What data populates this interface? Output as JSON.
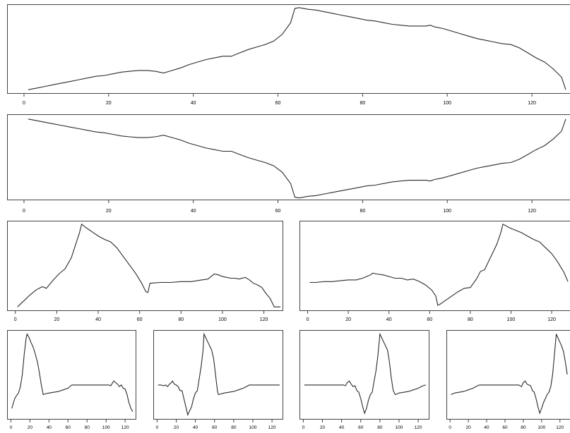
{
  "chart_data": [
    {
      "type": "line",
      "xticks": [
        "0",
        "20",
        "40",
        "60",
        "80",
        "100",
        "120"
      ],
      "xlim": [
        -4,
        129
      ],
      "ylim": [
        -0.02,
        1.04
      ],
      "x": [
        1,
        3,
        5,
        7,
        9,
        11,
        13,
        15,
        17,
        19,
        21,
        23,
        25,
        27,
        29,
        31,
        33,
        35,
        37,
        39,
        41,
        43,
        45,
        47,
        49,
        51,
        53,
        55,
        57,
        59,
        61,
        63,
        64,
        65,
        67,
        69,
        71,
        73,
        75,
        77,
        79,
        81,
        83,
        85,
        87,
        89,
        91,
        93,
        95,
        96,
        97,
        99,
        101,
        103,
        105,
        107,
        109,
        111,
        113,
        115,
        117,
        119,
        121,
        123,
        125,
        127,
        128
      ],
      "y": [
        0.02,
        0.04,
        0.06,
        0.08,
        0.1,
        0.12,
        0.14,
        0.16,
        0.18,
        0.19,
        0.21,
        0.23,
        0.24,
        0.25,
        0.25,
        0.24,
        0.22,
        0.25,
        0.28,
        0.32,
        0.35,
        0.38,
        0.4,
        0.42,
        0.42,
        0.46,
        0.5,
        0.53,
        0.56,
        0.6,
        0.68,
        0.82,
        0.99,
        1.0,
        0.98,
        0.97,
        0.95,
        0.93,
        0.91,
        0.89,
        0.87,
        0.85,
        0.84,
        0.82,
        0.8,
        0.79,
        0.78,
        0.78,
        0.78,
        0.79,
        0.77,
        0.75,
        0.72,
        0.69,
        0.66,
        0.63,
        0.61,
        0.59,
        0.57,
        0.56,
        0.52,
        0.46,
        0.4,
        0.35,
        0.27,
        0.17,
        0.02
      ]
    },
    {
      "type": "line",
      "xticks": [
        "0",
        "20",
        "40",
        "60",
        "80",
        "100",
        "120"
      ],
      "xlim": [
        -4,
        129
      ],
      "ylim": [
        -0.02,
        1.04
      ],
      "x": [
        1,
        3,
        5,
        7,
        9,
        11,
        13,
        15,
        17,
        19,
        21,
        23,
        25,
        27,
        29,
        31,
        33,
        35,
        37,
        39,
        41,
        43,
        45,
        47,
        49,
        51,
        53,
        55,
        57,
        59,
        61,
        63,
        64,
        65,
        67,
        69,
        71,
        73,
        75,
        77,
        79,
        81,
        83,
        85,
        87,
        89,
        91,
        93,
        95,
        96,
        97,
        99,
        101,
        103,
        105,
        107,
        109,
        111,
        113,
        115,
        117,
        119,
        121,
        123,
        125,
        127,
        128
      ],
      "y": [
        0.98,
        0.96,
        0.94,
        0.92,
        0.9,
        0.88,
        0.86,
        0.84,
        0.82,
        0.81,
        0.79,
        0.77,
        0.76,
        0.75,
        0.75,
        0.76,
        0.78,
        0.75,
        0.72,
        0.68,
        0.65,
        0.62,
        0.6,
        0.58,
        0.58,
        0.54,
        0.5,
        0.47,
        0.44,
        0.4,
        0.32,
        0.18,
        0.01,
        0.0,
        0.02,
        0.03,
        0.05,
        0.07,
        0.09,
        0.11,
        0.13,
        0.15,
        0.16,
        0.18,
        0.2,
        0.21,
        0.22,
        0.22,
        0.22,
        0.21,
        0.23,
        0.25,
        0.28,
        0.31,
        0.34,
        0.37,
        0.39,
        0.41,
        0.43,
        0.44,
        0.48,
        0.54,
        0.6,
        0.65,
        0.73,
        0.83,
        0.98
      ]
    },
    {
      "type": "line",
      "xticks": [
        "0",
        "20",
        "40",
        "60",
        "80",
        "100",
        "120"
      ],
      "xlim": [
        -4,
        129
      ],
      "ylim": [
        -0.02,
        1.04
      ],
      "x": [
        1,
        4,
        7,
        10,
        13,
        15,
        18,
        21,
        24,
        27,
        29,
        31,
        32,
        34,
        37,
        40,
        43,
        46,
        49,
        52,
        55,
        58,
        61,
        63,
        64,
        65,
        70,
        75,
        80,
        85,
        90,
        93,
        95,
        96,
        98,
        100,
        102,
        104,
        106,
        108,
        111,
        113,
        115,
        117,
        119,
        121,
        123,
        125,
        127,
        128
      ],
      "y": [
        0.02,
        0.09,
        0.16,
        0.22,
        0.26,
        0.24,
        0.33,
        0.41,
        0.47,
        0.6,
        0.75,
        0.9,
        1.0,
        0.96,
        0.91,
        0.86,
        0.82,
        0.79,
        0.72,
        0.62,
        0.52,
        0.42,
        0.3,
        0.2,
        0.19,
        0.3,
        0.31,
        0.31,
        0.32,
        0.32,
        0.34,
        0.35,
        0.39,
        0.41,
        0.4,
        0.38,
        0.37,
        0.36,
        0.36,
        0.35,
        0.37,
        0.34,
        0.3,
        0.28,
        0.25,
        0.18,
        0.12,
        0.02,
        0.02,
        0.02
      ]
    },
    {
      "type": "line",
      "xticks": [
        "0",
        "20",
        "40",
        "60",
        "80",
        "100",
        "120"
      ],
      "xlim": [
        -4,
        129
      ],
      "ylim": [
        -0.02,
        1.04
      ],
      "x": [
        1,
        4,
        8,
        12,
        16,
        20,
        24,
        27,
        29,
        31,
        32,
        34,
        37,
        40,
        43,
        46,
        49,
        52,
        55,
        58,
        61,
        63,
        64,
        65,
        68,
        71,
        74,
        77,
        80,
        83,
        85,
        87,
        89,
        91,
        93,
        95,
        96,
        99,
        102,
        105,
        108,
        111,
        114,
        117,
        120,
        123,
        126,
        128
      ],
      "y": [
        0.31,
        0.31,
        0.32,
        0.32,
        0.33,
        0.34,
        0.34,
        0.36,
        0.38,
        0.4,
        0.42,
        0.41,
        0.4,
        0.38,
        0.36,
        0.36,
        0.34,
        0.35,
        0.32,
        0.28,
        0.22,
        0.15,
        0.04,
        0.05,
        0.1,
        0.15,
        0.2,
        0.24,
        0.25,
        0.35,
        0.44,
        0.46,
        0.56,
        0.66,
        0.76,
        0.9,
        1.0,
        0.96,
        0.93,
        0.9,
        0.86,
        0.82,
        0.79,
        0.72,
        0.65,
        0.55,
        0.43,
        0.32
      ]
    },
    {
      "type": "line",
      "xticks": [
        "0",
        "20",
        "40",
        "60",
        "80",
        "100",
        "120"
      ],
      "xlim": [
        -4,
        131
      ],
      "ylim": [
        -0.05,
        1.05
      ],
      "x": [
        1,
        4,
        6,
        8,
        10,
        12,
        14,
        16,
        17,
        19,
        21,
        23,
        25,
        28,
        30,
        32,
        34,
        36,
        40,
        45,
        50,
        55,
        60,
        63,
        64,
        65,
        70,
        75,
        80,
        85,
        90,
        95,
        100,
        103,
        105,
        107,
        108,
        110,
        112,
        114,
        116,
        118,
        120,
        122,
        124,
        126,
        128
      ],
      "y": [
        0.08,
        0.2,
        0.24,
        0.27,
        0.35,
        0.5,
        0.75,
        0.95,
        1.0,
        0.96,
        0.9,
        0.85,
        0.78,
        0.65,
        0.52,
        0.37,
        0.25,
        0.26,
        0.27,
        0.28,
        0.29,
        0.31,
        0.33,
        0.36,
        0.37,
        0.37,
        0.37,
        0.37,
        0.37,
        0.37,
        0.37,
        0.37,
        0.37,
        0.37,
        0.36,
        0.4,
        0.42,
        0.4,
        0.38,
        0.35,
        0.37,
        0.33,
        0.32,
        0.25,
        0.15,
        0.08,
        0.04
      ]
    },
    {
      "type": "line",
      "xticks": [
        "0",
        "20",
        "40",
        "60",
        "80",
        "100",
        "120"
      ],
      "xlim": [
        -4,
        131
      ],
      "ylim": [
        -0.05,
        1.05
      ],
      "x": [
        1,
        4,
        7,
        9,
        11,
        13,
        15,
        16,
        18,
        20,
        22,
        24,
        26,
        28,
        30,
        32,
        34,
        36,
        38,
        40,
        42,
        44,
        46,
        48,
        49,
        51,
        53,
        55,
        57,
        59,
        61,
        63,
        64,
        70,
        75,
        80,
        85,
        90,
        95,
        96,
        100,
        105,
        110,
        115,
        120,
        125,
        128
      ],
      "y": [
        0.37,
        0.37,
        0.36,
        0.37,
        0.35,
        0.38,
        0.4,
        0.42,
        0.38,
        0.37,
        0.35,
        0.3,
        0.3,
        0.2,
        0.1,
        0.0,
        0.05,
        0.1,
        0.2,
        0.27,
        0.3,
        0.45,
        0.6,
        0.8,
        1.0,
        0.95,
        0.9,
        0.85,
        0.8,
        0.7,
        0.5,
        0.3,
        0.25,
        0.27,
        0.28,
        0.29,
        0.31,
        0.33,
        0.36,
        0.37,
        0.37,
        0.37,
        0.37,
        0.37,
        0.37,
        0.37,
        0.37
      ]
    },
    {
      "type": "line",
      "xticks": [
        "0",
        "20",
        "40",
        "60",
        "80",
        "100",
        "120"
      ],
      "xlim": [
        -4,
        131
      ],
      "ylim": [
        -0.05,
        1.05
      ],
      "x": [
        1,
        10,
        20,
        30,
        38,
        42,
        44,
        46,
        48,
        50,
        52,
        54,
        56,
        58,
        60,
        62,
        64,
        66,
        68,
        70,
        72,
        74,
        76,
        78,
        80,
        82,
        84,
        86,
        88,
        90,
        92,
        94,
        96,
        100,
        105,
        110,
        115,
        120,
        125,
        128
      ],
      "y": [
        0.37,
        0.37,
        0.37,
        0.37,
        0.37,
        0.37,
        0.36,
        0.4,
        0.42,
        0.38,
        0.35,
        0.36,
        0.3,
        0.28,
        0.2,
        0.1,
        0.02,
        0.08,
        0.18,
        0.25,
        0.28,
        0.42,
        0.55,
        0.75,
        1.0,
        0.95,
        0.9,
        0.85,
        0.8,
        0.65,
        0.45,
        0.3,
        0.25,
        0.27,
        0.28,
        0.29,
        0.31,
        0.33,
        0.36,
        0.37
      ]
    },
    {
      "type": "line",
      "xticks": [
        "0",
        "20",
        "40",
        "60",
        "80",
        "100",
        "120"
      ],
      "xlim": [
        -4,
        131
      ],
      "ylim": [
        -0.05,
        1.05
      ],
      "x": [
        1,
        5,
        10,
        15,
        20,
        25,
        30,
        32,
        40,
        50,
        60,
        70,
        75,
        78,
        80,
        82,
        84,
        86,
        88,
        90,
        92,
        94,
        96,
        98,
        100,
        102,
        104,
        106,
        108,
        110,
        112,
        114,
        116,
        118,
        120,
        122,
        124,
        126,
        128
      ],
      "y": [
        0.25,
        0.27,
        0.28,
        0.29,
        0.31,
        0.33,
        0.36,
        0.37,
        0.37,
        0.37,
        0.37,
        0.37,
        0.37,
        0.35,
        0.4,
        0.42,
        0.38,
        0.37,
        0.36,
        0.3,
        0.28,
        0.2,
        0.1,
        0.02,
        0.08,
        0.15,
        0.2,
        0.25,
        0.28,
        0.35,
        0.5,
        0.75,
        1.0,
        0.95,
        0.9,
        0.85,
        0.78,
        0.65,
        0.5
      ]
    }
  ]
}
